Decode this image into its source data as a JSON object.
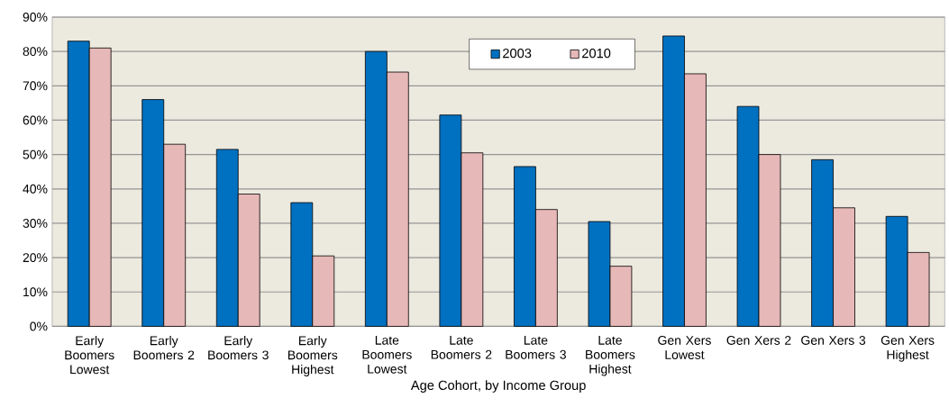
{
  "chart_data": {
    "type": "bar",
    "xlabel": "Age Cohort, by Income Group",
    "categories": [
      "Early Boomers Lowest",
      "Early Boomers 2",
      "Early Boomers 3",
      "Early Boomers Highest",
      "Late Boomers Lowest",
      "Late Boomers 2",
      "Late Boomers 3",
      "Late Boomers Highest",
      "Gen Xers Lowest",
      "Gen Xers 2",
      "Gen Xers 3",
      "Gen Xers Highest"
    ],
    "series": [
      {
        "name": "2003",
        "color": "#0070c0",
        "values": [
          83,
          66,
          51.5,
          36,
          80,
          61.5,
          46.5,
          30.5,
          84.5,
          64,
          48.5,
          32
        ]
      },
      {
        "name": "2010",
        "color": "#e6b8b7",
        "values": [
          81,
          53,
          38.5,
          20.5,
          74,
          50.5,
          34,
          17.5,
          73.5,
          50,
          34.5,
          21.5
        ]
      }
    ],
    "ylim": [
      0,
      90
    ],
    "yticks": [
      {
        "value": 0,
        "label": "0%"
      },
      {
        "value": 10,
        "label": "10%"
      },
      {
        "value": 20,
        "label": "20%"
      },
      {
        "value": 30,
        "label": "30%"
      },
      {
        "value": 40,
        "label": "40%"
      },
      {
        "value": 50,
        "label": "50%"
      },
      {
        "value": 60,
        "label": "60%"
      },
      {
        "value": 70,
        "label": "70%"
      },
      {
        "value": 80,
        "label": "80%"
      },
      {
        "value": 90,
        "label": "90%"
      }
    ],
    "grid": "y",
    "legend": "top"
  }
}
